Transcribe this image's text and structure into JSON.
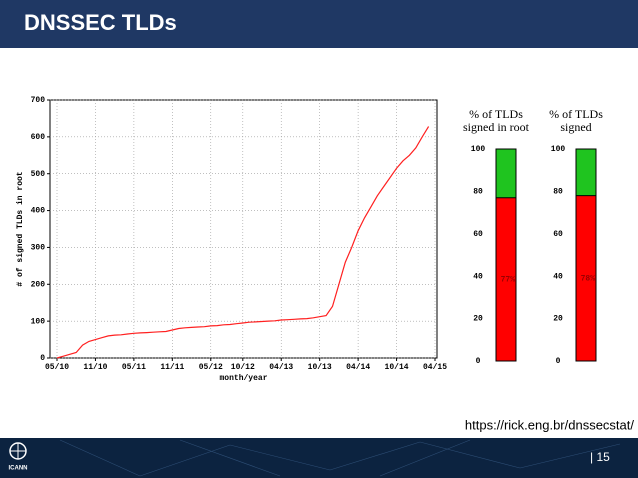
{
  "slide": {
    "title": "DNSSEC TLDs",
    "url": "https://rick.eng.br/dnssecstat/",
    "page": "| 15",
    "logo": "ICANN"
  },
  "chart_data": [
    {
      "type": "line",
      "ylabel": "# of signed TLDs in root",
      "xlabel": "month/year",
      "color": "#ff2020",
      "grid": true,
      "x": [
        "05/10",
        "06/10",
        "07/10",
        "08/10",
        "09/10",
        "10/10",
        "11/10",
        "12/10",
        "01/11",
        "02/11",
        "03/11",
        "04/11",
        "05/11",
        "06/11",
        "07/11",
        "08/11",
        "09/11",
        "10/11",
        "11/11",
        "12/11",
        "01/12",
        "02/12",
        "03/12",
        "04/12",
        "05/12",
        "06/12",
        "07/12",
        "08/12",
        "09/12",
        "10/12",
        "11/12",
        "12/12",
        "01/13",
        "02/13",
        "03/13",
        "04/13",
        "05/13",
        "06/13",
        "07/13",
        "08/13",
        "09/13",
        "10/13",
        "11/13",
        "12/13",
        "01/14",
        "02/14",
        "03/14",
        "04/14",
        "05/14",
        "06/14",
        "07/14",
        "08/14",
        "09/14",
        "10/14",
        "11/14",
        "12/14",
        "01/15",
        "02/15",
        "03/15",
        "04/15"
      ],
      "values": [
        0,
        5,
        10,
        15,
        35,
        45,
        50,
        55,
        60,
        62,
        63,
        65,
        67,
        68,
        69,
        70,
        71,
        72,
        76,
        80,
        82,
        83,
        84,
        85,
        87,
        88,
        90,
        91,
        93,
        95,
        97,
        98,
        99,
        100,
        101,
        103,
        104,
        105,
        106,
        107,
        109,
        112,
        115,
        140,
        200,
        260,
        300,
        345,
        380,
        410,
        440,
        465,
        490,
        515,
        535,
        550,
        570,
        600,
        628,
        null
      ],
      "xticks": [
        "05/10",
        "11/10",
        "05/11",
        "11/11",
        "05/12",
        "10/12",
        "04/13",
        "10/13",
        "04/14",
        "10/14",
        "04/15"
      ],
      "ylim": [
        0,
        700
      ],
      "yticks": [
        0,
        100,
        200,
        300,
        400,
        500,
        600,
        700
      ]
    },
    {
      "type": "bar",
      "title": [
        "% of TLDs",
        "signed in root"
      ],
      "values": [
        77
      ],
      "value_labels": [
        "77%"
      ],
      "color": "#ff0000",
      "ylim": [
        0,
        100
      ],
      "yticks": [
        0,
        20,
        40,
        60,
        80,
        100
      ]
    },
    {
      "type": "bar",
      "title": [
        "% of TLDs",
        "signed"
      ],
      "values": [
        78
      ],
      "value_labels": [
        "78%"
      ],
      "color": "#ff0000",
      "ylim": [
        0,
        100
      ],
      "yticks": [
        0,
        20,
        40,
        60,
        80,
        100
      ]
    }
  ]
}
